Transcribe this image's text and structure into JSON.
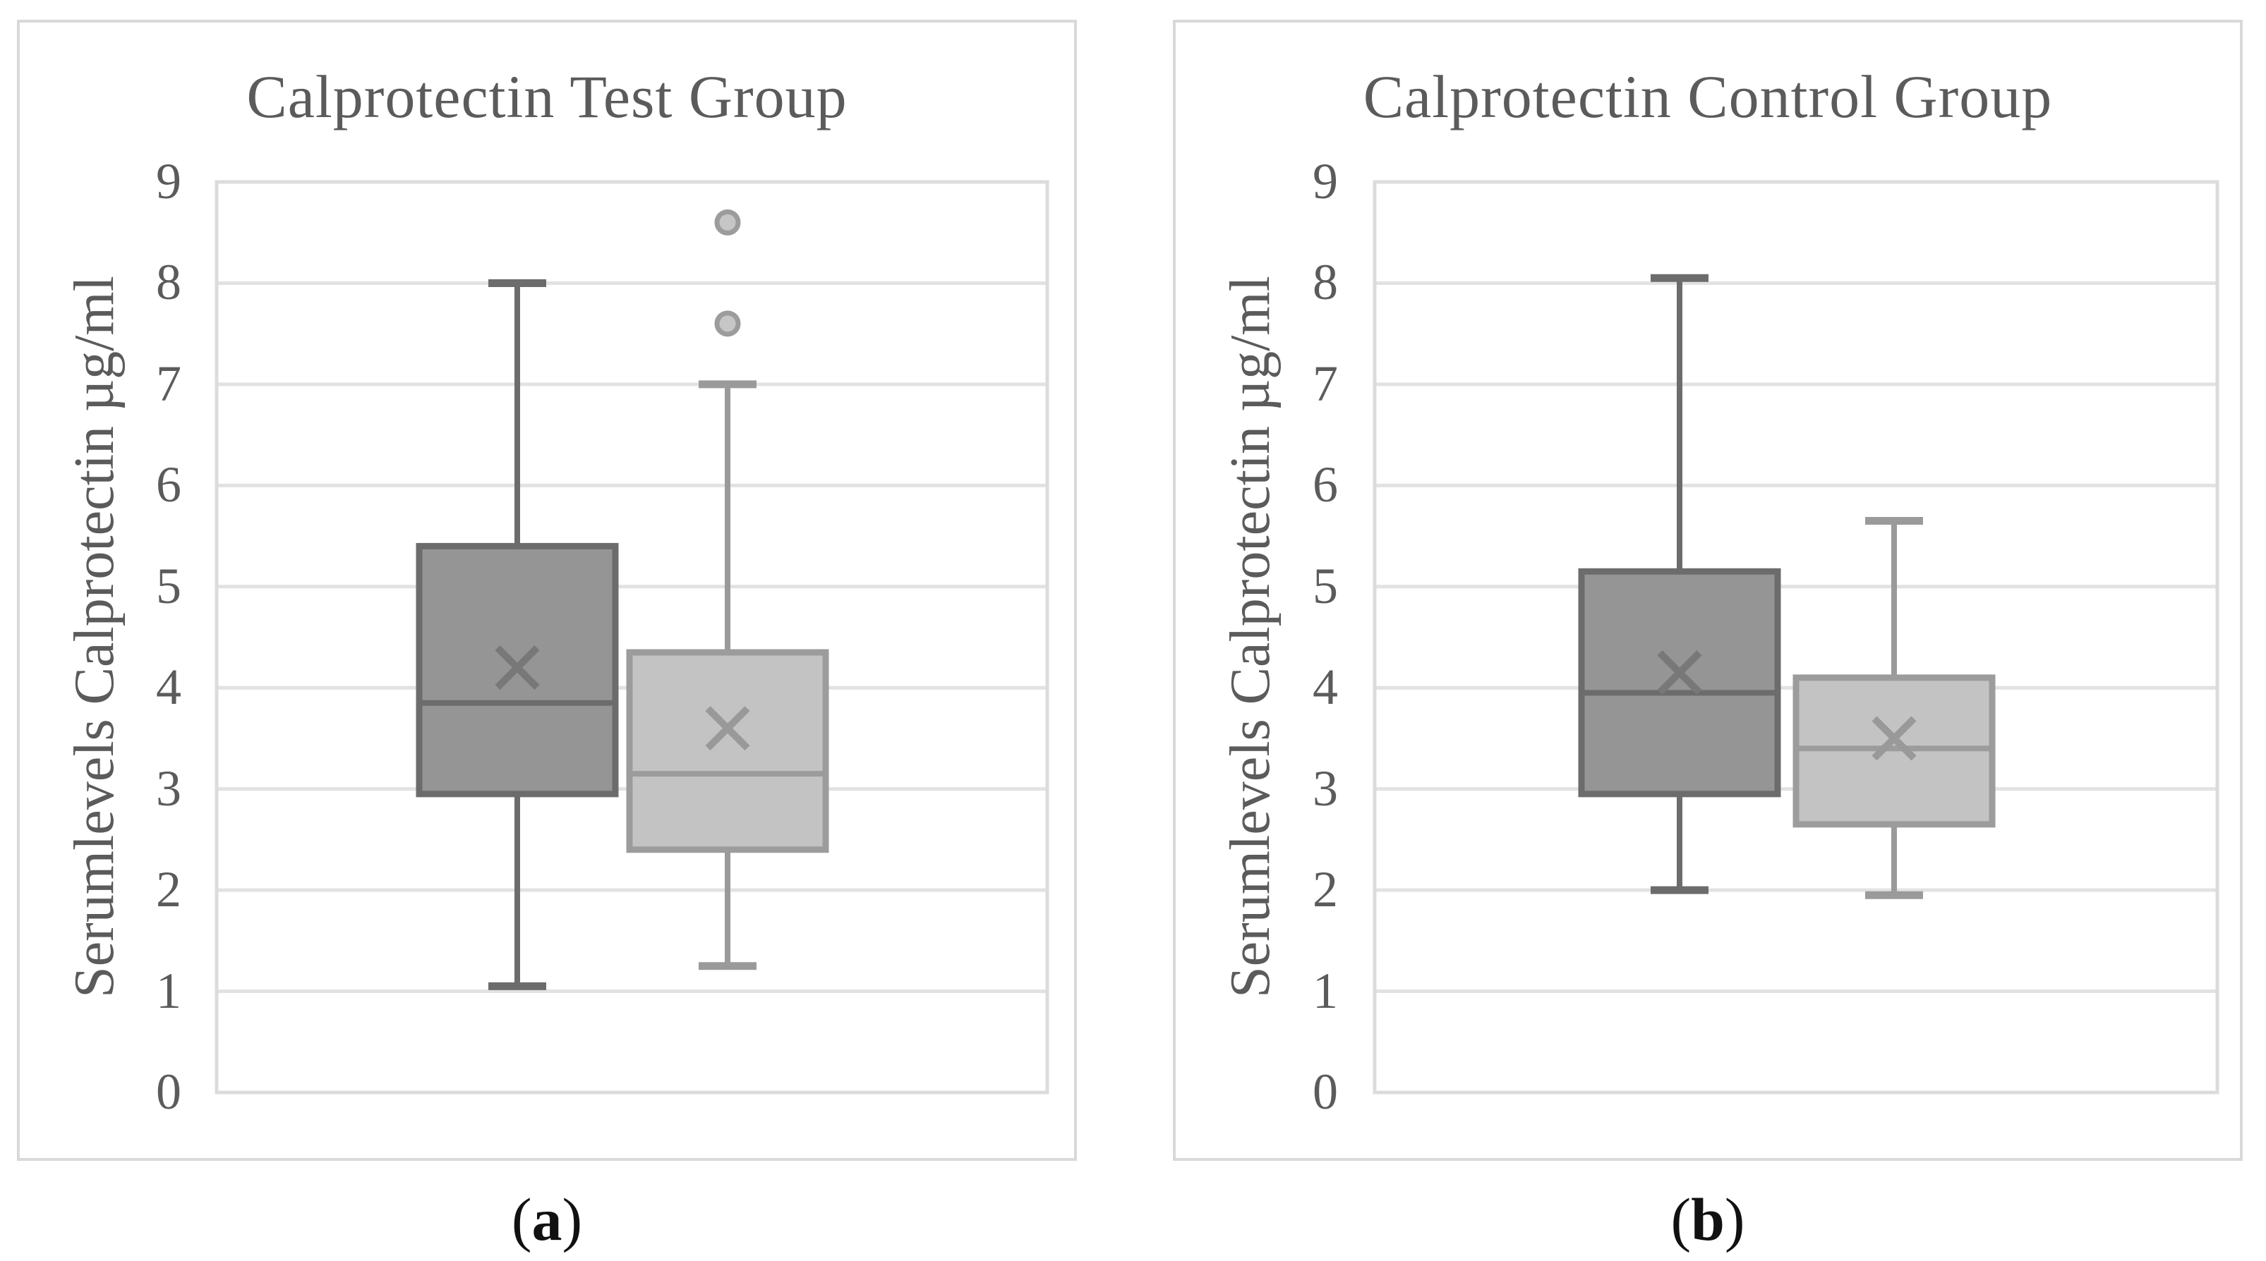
{
  "style": {
    "text_color": "#5b5b5b",
    "caption_color": "#111111",
    "panel_border_color": "#d9d9d9",
    "gridline_color": "#e2e2e2",
    "plot_border_color": "#dcdcdc",
    "series_styles": {
      "dark": {
        "fill": "#959595",
        "stroke": "#6c6c6c",
        "whisker": "#6c6c6c",
        "mean": "#787878"
      },
      "light": {
        "fill": "#c3c3c3",
        "stroke": "#9c9c9c",
        "whisker": "#9a9a9a",
        "mean": "#999999"
      }
    },
    "outlier": {
      "fill": "#c6c6c6",
      "stroke": "#9c9c9c"
    }
  },
  "chart_data": [
    {
      "type": "box",
      "title": "Calprotectin Test Group",
      "ylabel": "Serumlevels Calprotectin µg/ml",
      "xlabel": "",
      "ylim": [
        0,
        9
      ],
      "yticks": [
        0,
        1,
        2,
        3,
        4,
        5,
        6,
        7,
        8,
        9
      ],
      "grid": "horizontal",
      "legend": "none",
      "caption": {
        "open": "(",
        "label": "a",
        "close": ")"
      },
      "series": [
        {
          "style": "dark",
          "whisker_low": 1.05,
          "q1": 2.95,
          "median": 3.85,
          "q3": 5.4,
          "whisker_high": 8.0,
          "mean": 4.2,
          "outliers": []
        },
        {
          "style": "light",
          "whisker_low": 1.25,
          "q1": 2.4,
          "median": 3.15,
          "q3": 4.35,
          "whisker_high": 7.0,
          "mean": 3.6,
          "outliers": [
            7.6,
            8.6
          ]
        }
      ]
    },
    {
      "type": "box",
      "title": "Calprotectin Control Group",
      "ylabel": "Serumlevels Calprotectin µg/ml",
      "xlabel": "",
      "ylim": [
        0,
        9
      ],
      "yticks": [
        0,
        1,
        2,
        3,
        4,
        5,
        6,
        7,
        8,
        9
      ],
      "grid": "horizontal",
      "legend": "none",
      "caption": {
        "open": "(",
        "label": "b",
        "close": ")"
      },
      "series": [
        {
          "style": "dark",
          "whisker_low": 2.0,
          "q1": 2.95,
          "median": 3.95,
          "q3": 5.15,
          "whisker_high": 8.05,
          "mean": 4.15,
          "outliers": []
        },
        {
          "style": "light",
          "whisker_low": 1.95,
          "q1": 2.65,
          "median": 3.4,
          "q3": 4.1,
          "whisker_high": 5.65,
          "mean": 3.5,
          "outliers": []
        }
      ]
    }
  ]
}
